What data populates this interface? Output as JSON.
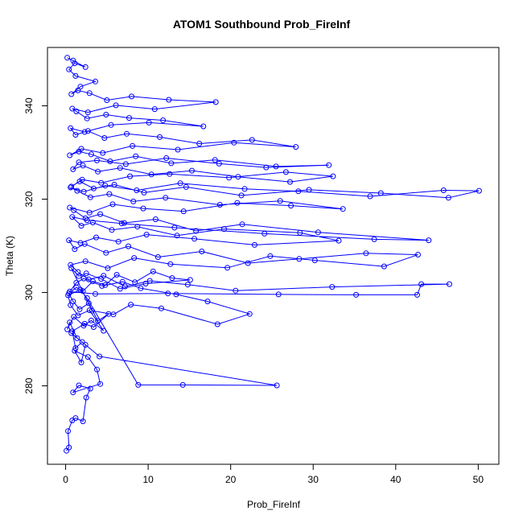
{
  "chart_data": {
    "type": "line",
    "title": "ATOM1 Southbound Prob_FireInf",
    "xlabel": "Prob_FireInf",
    "ylabel": "Theta (K)",
    "xlim": [
      -2.2,
      52.5
    ],
    "ylim": [
      263.2,
      352.5
    ],
    "x_ticks": [
      0,
      10,
      20,
      30,
      40,
      50
    ],
    "y_ticks": [
      280,
      300,
      320,
      340
    ],
    "grid": false,
    "legend": "none",
    "marker": "open-circle",
    "color": "#0000ff",
    "series": [
      {
        "x": [
          0.1,
          0.4,
          0.3,
          0.8,
          1.2,
          2.1,
          2.5,
          3.0,
          1.6,
          0.9,
          4.2,
          3.8,
          2.7,
          1.1,
          1.9,
          2.4,
          0.7,
          1.4,
          0.5,
          0.2,
          1.0,
          2.2,
          3.1,
          4.6,
          2.9,
          1.5,
          0.6,
          0.3,
          1.8,
          2.6,
          8.8,
          14.2,
          25.6,
          4.1,
          2.0,
          1.2,
          0.8,
          2.3,
          3.4,
          5.2,
          3.9,
          2.8,
          1.7,
          0.9,
          0.4,
          1.3,
          2.1,
          3.3,
          4.8,
          6.2,
          8.4,
          10.6,
          12.9,
          15.1,
          9.7,
          6.6,
          4.3,
          2.5,
          1.6,
          0.7,
          3.2,
          5.8,
          7.9,
          11.6,
          18.4,
          22.3,
          17.2,
          13.4,
          9.1,
          6.9,
          4.4,
          2.2,
          1.3,
          0.5,
          3.6,
          12.4,
          25.8,
          35.2,
          42.6,
          43.1,
          46.5,
          32.3,
          20.6,
          14.8,
          10.2,
          7.2,
          4.6,
          2.8,
          1.5,
          0.6,
          2.4,
          5.1,
          8.3,
          12.7,
          19.6,
          24.8,
          30.2,
          38.6,
          42.7,
          36.4,
          28.3,
          22.1,
          16.5,
          11.2,
          7.6,
          4.9,
          2.3,
          1.1,
          0.4,
          1.8,
          3.7,
          6.4,
          9.8,
          15.6,
          22.9,
          33.1,
          28.4,
          19.2,
          13.5,
          8.7,
          5.6,
          3.3,
          1.9,
          0.8,
          2.6,
          6.8,
          13.2,
          24.1,
          37.4,
          44.0,
          30.6,
          21.4,
          15.8,
          10.9,
          7.1,
          4.2,
          2.4,
          1.0,
          0.5,
          2.9,
          5.7,
          9.4,
          14.3,
          20.8,
          27.3,
          33.6,
          26.0,
          18.7,
          12.1,
          8.2,
          5.3,
          3.0,
          1.4,
          0.6,
          2.2,
          4.8,
          8.6,
          13.9,
          21.7,
          28.2,
          36.9,
          45.8,
          50.1,
          46.4,
          38.2,
          29.5,
          21.3,
          14.6,
          9.5,
          5.9,
          3.4,
          1.7,
          0.7,
          2.0,
          4.3,
          7.8,
          12.6,
          19.8,
          26.7,
          32.4,
          27.2,
          20.9,
          15.3,
          10.4,
          6.6,
          3.9,
          2.1,
          0.9,
          1.6,
          3.8,
          7.3,
          12.2,
          18.6,
          24.3,
          31.9,
          25.5,
          18.1,
          12.8,
          8.5,
          5.4,
          3.1,
          1.6,
          0.5,
          1.9,
          4.5,
          8.1,
          13.6,
          20.4,
          27.9,
          22.6,
          16.2,
          11.4,
          7.4,
          4.7,
          2.7,
          1.2,
          0.6,
          2.3,
          5.5,
          10.1,
          16.7,
          11.8,
          7.7,
          4.9,
          2.6,
          1.3,
          0.8,
          2.7,
          6.1,
          10.8,
          18.2,
          12.5,
          8.0,
          5.0,
          2.9,
          1.5,
          0.7,
          1.8,
          3.6,
          1.2,
          0.4,
          1.1,
          2.4,
          0.9,
          0.2
        ],
        "y": [
          266.1,
          266.8,
          270.3,
          272.6,
          273.1,
          272.4,
          277.5,
          279.4,
          280.1,
          278.6,
          280.4,
          283.5,
          286.2,
          287.5,
          285.0,
          288.8,
          291.3,
          290.2,
          293.6,
          292.1,
          294.8,
          292.9,
          294.0,
          291.8,
          296.2,
          295.1,
          297.3,
          299.4,
          300.6,
          298.8,
          280.2,
          280.2,
          280.1,
          286.3,
          289.4,
          288.1,
          291.7,
          293.3,
          292.6,
          295.4,
          293.9,
          297.7,
          296.4,
          298.1,
          299.8,
          301.1,
          300.3,
          302.4,
          301.6,
          303.8,
          302.2,
          304.5,
          303.1,
          302.7,
          301.9,
          300.8,
          302.9,
          304.1,
          303.5,
          305.2,
          296.1,
          295.3,
          297.4,
          296.6,
          293.2,
          295.4,
          298.1,
          299.6,
          300.9,
          302.3,
          301.4,
          303.0,
          302.1,
          300.2,
          299.7,
          299.8,
          299.6,
          299.5,
          299.5,
          301.8,
          301.8,
          301.2,
          300.4,
          301.7,
          302.5,
          301.3,
          303.6,
          302.8,
          304.4,
          305.9,
          306.7,
          305.2,
          307.4,
          306.1,
          305.3,
          307.8,
          306.9,
          305.6,
          308.1,
          308.4,
          307.2,
          306.3,
          308.8,
          307.6,
          309.9,
          308.5,
          310.4,
          309.3,
          311.2,
          310.6,
          311.8,
          310.9,
          312.4,
          311.5,
          310.2,
          311.1,
          312.8,
          313.6,
          312.2,
          314.1,
          313.4,
          315.0,
          314.3,
          316.2,
          315.5,
          314.8,
          313.9,
          312.6,
          311.4,
          311.2,
          312.9,
          314.6,
          313.2,
          315.7,
          314.9,
          316.8,
          315.9,
          317.6,
          318.2,
          317.1,
          318.9,
          318.0,
          317.4,
          319.2,
          318.6,
          317.9,
          319.6,
          318.8,
          320.3,
          319.5,
          321.1,
          320.4,
          321.8,
          322.5,
          321.6,
          322.9,
          321.9,
          323.4,
          322.2,
          321.7,
          320.6,
          321.9,
          321.8,
          320.3,
          321.3,
          322.0,
          320.8,
          322.6,
          321.4,
          323.1,
          322.3,
          323.8,
          322.7,
          324.2,
          323.5,
          324.9,
          325.4,
          324.6,
          325.8,
          324.9,
          323.7,
          324.8,
          326.1,
          325.3,
          326.7,
          325.9,
          327.2,
          326.4,
          327.9,
          328.3,
          327.5,
          328.8,
          327.6,
          326.8,
          327.3,
          327.0,
          328.4,
          327.7,
          329.2,
          328.1,
          329.6,
          330.2,
          329.4,
          330.8,
          329.9,
          331.4,
          330.6,
          332.1,
          331.2,
          332.7,
          331.9,
          333.3,
          334.0,
          333.1,
          334.6,
          333.8,
          335.2,
          334.4,
          335.9,
          336.4,
          335.6,
          336.9,
          337.4,
          338.1,
          337.3,
          338.8,
          339.4,
          338.6,
          340.1,
          339.3,
          340.8,
          341.3,
          342.0,
          341.2,
          342.7,
          343.3,
          342.5,
          344.1,
          345.2,
          346.4,
          347.8,
          349.1,
          348.3,
          349.7,
          350.3
        ]
      }
    ]
  }
}
